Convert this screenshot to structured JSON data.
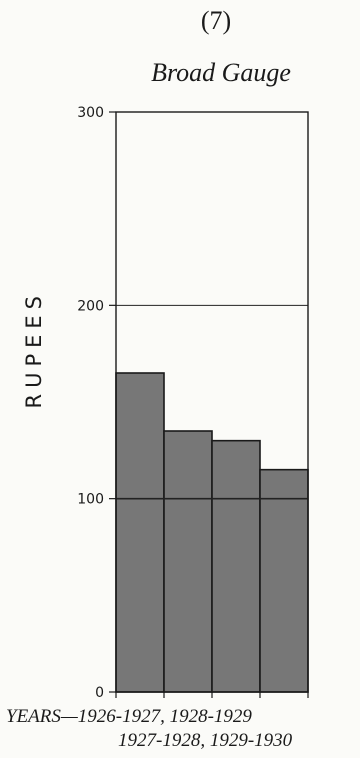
{
  "figure_number": "(7)",
  "chart_data": {
    "type": "bar",
    "title": "Broad Gauge",
    "ylabel": "RUPEES",
    "ylim": [
      0,
      300
    ],
    "yticks": [
      0,
      100,
      200,
      300
    ],
    "grid": true,
    "categories": [
      "1926-1927",
      "1927-1928",
      "1928-1929",
      "1929-1930"
    ],
    "values": [
      165,
      135,
      130,
      115
    ],
    "bar_color": "#777777",
    "xlabel_line1": "YEARS—1926-1927, 1928-1929",
    "xlabel_line2": "1927-1928, 1929-1930"
  }
}
